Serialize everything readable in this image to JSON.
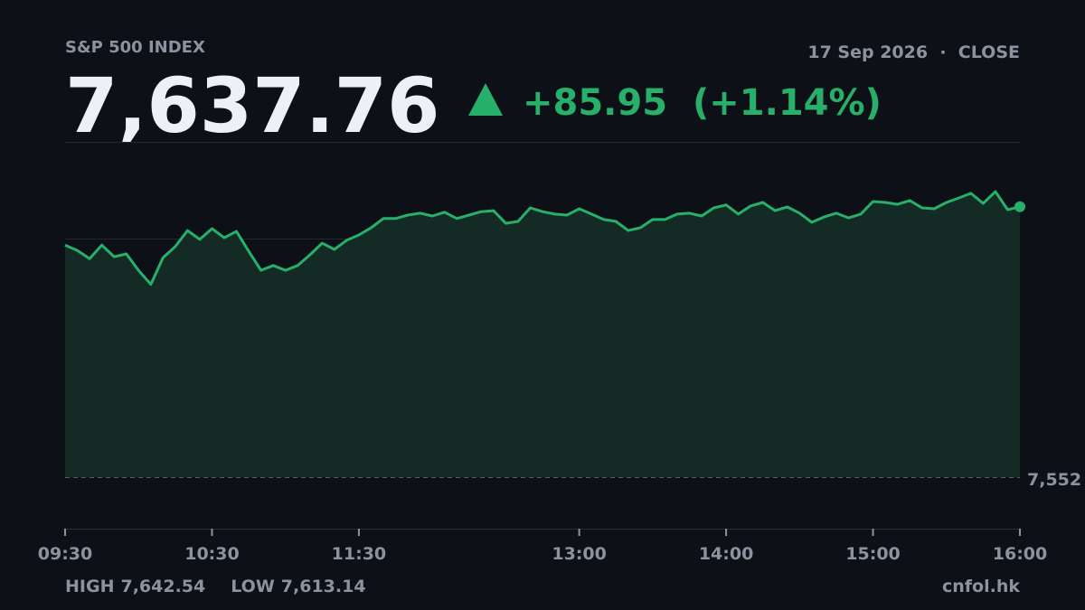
{
  "chart_data": {
    "type": "line",
    "title": "S&P 500 INDEX",
    "date": "17 Sep 2026",
    "status": "CLOSE",
    "price": "7,637.76",
    "change": "+85.95",
    "change_percent": "(+1.14%)",
    "high_label": "HIGH",
    "high": "7,642.54",
    "low_label": "LOW",
    "low": "7,613.14",
    "source": "cnfol.hk",
    "x": [
      "09:30",
      "09:35",
      "09:40",
      "09:45",
      "09:50",
      "09:55",
      "10:00",
      "10:05",
      "10:10",
      "10:15",
      "10:20",
      "10:25",
      "10:30",
      "10:35",
      "10:40",
      "10:45",
      "10:50",
      "10:55",
      "11:00",
      "11:05",
      "11:10",
      "11:15",
      "11:20",
      "11:25",
      "11:30",
      "11:35",
      "11:40",
      "11:45",
      "11:50",
      "11:55",
      "12:00",
      "12:05",
      "12:10",
      "12:15",
      "12:20",
      "12:25",
      "12:30",
      "12:35",
      "12:40",
      "12:45",
      "12:50",
      "12:55",
      "13:00",
      "13:05",
      "13:10",
      "13:15",
      "13:20",
      "13:25",
      "13:30",
      "13:35",
      "13:40",
      "13:45",
      "13:50",
      "13:55",
      "14:00",
      "14:05",
      "14:10",
      "14:15",
      "14:20",
      "14:25",
      "14:30",
      "14:35",
      "14:40",
      "14:45",
      "14:50",
      "14:55",
      "15:00",
      "15:05",
      "15:10",
      "15:15",
      "15:20",
      "15:25",
      "15:30",
      "15:35",
      "15:40",
      "15:45",
      "15:50",
      "15:55",
      "16:00"
    ],
    "series": [
      {
        "name": "S&P 500",
        "color": "#27b06a",
        "values": [
          7625.6,
          7623.9,
          7621.3,
          7625.6,
          7621.9,
          7622.8,
          7617.6,
          7613.14,
          7621.6,
          7625.1,
          7630.2,
          7627.4,
          7630.8,
          7627.9,
          7629.9,
          7623.6,
          7617.6,
          7619.1,
          7617.6,
          7619.1,
          7622.5,
          7626.2,
          7624.2,
          7627.1,
          7628.8,
          7631.1,
          7634.0,
          7634.0,
          7635.1,
          7635.7,
          7634.8,
          7636.0,
          7634.0,
          7635.1,
          7636.2,
          7636.5,
          7632.5,
          7633.1,
          7637.4,
          7636.2,
          7635.4,
          7635.1,
          7637.1,
          7635.4,
          7633.7,
          7633.1,
          7630.2,
          7631.1,
          7633.7,
          7633.7,
          7635.4,
          7635.7,
          7634.8,
          7637.4,
          7638.3,
          7635.4,
          7638.0,
          7639.1,
          7636.5,
          7637.7,
          7635.7,
          7632.8,
          7634.5,
          7635.7,
          7634.2,
          7635.4,
          7639.4,
          7639.1,
          7638.5,
          7639.7,
          7637.4,
          7637.1,
          7639.1,
          7640.5,
          7642.0,
          7638.8,
          7642.54,
          7636.8,
          7637.76
        ]
      }
    ],
    "area_color": "#132a25",
    "xlim": [
      "09:30",
      "16:00"
    ],
    "xticks": [
      "09:30",
      "10:30",
      "11:30",
      "13:00",
      "14:00",
      "15:00",
      "16:00"
    ],
    "ylim": [
      7535.7,
      7658.3
    ],
    "reference_line": {
      "value": 7552,
      "label": "7,552"
    }
  }
}
